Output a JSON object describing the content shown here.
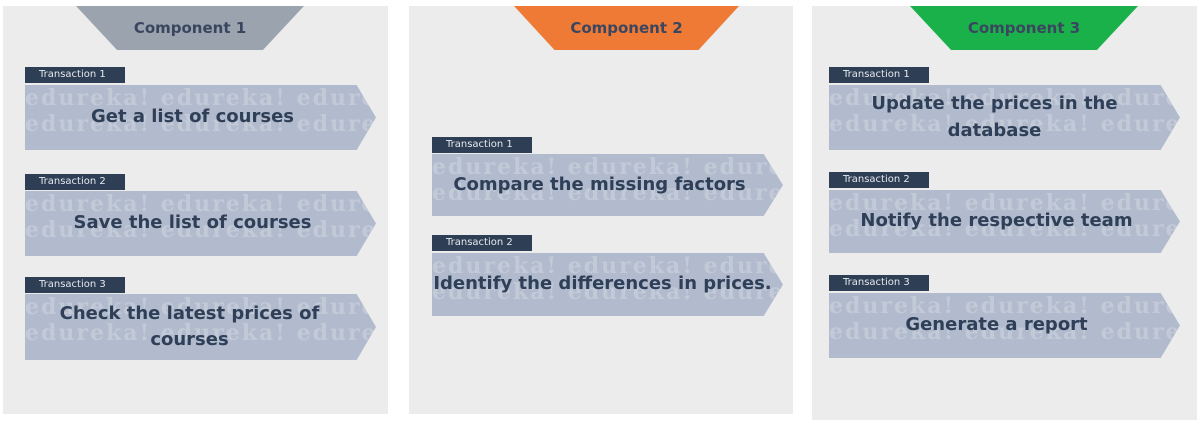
{
  "components": [
    {
      "title": "Component 1",
      "color": "#9aa3ae",
      "transactions": [
        {
          "label": "Transaction 1",
          "text": "Get a list of courses"
        },
        {
          "label": "Transaction 2",
          "text": "Save the list of courses"
        },
        {
          "label": "Transaction 3",
          "text": "Check the latest prices of courses"
        }
      ]
    },
    {
      "title": "Component 2",
      "color": "#ee7a36",
      "transactions": [
        {
          "label": "Transaction 1",
          "text": "Compare the missing factors"
        },
        {
          "label": "Transaction 2",
          "text": "Identify the differences in prices."
        }
      ]
    },
    {
      "title": "Component 3",
      "color": "#1bb14a",
      "transactions": [
        {
          "label": "Transaction 1",
          "text": "Update the prices in the database"
        },
        {
          "label": "Transaction 2",
          "text": "Notify the respective team"
        },
        {
          "label": "Transaction 3",
          "text": "Generate a report"
        }
      ]
    }
  ],
  "watermark": "edureka!"
}
